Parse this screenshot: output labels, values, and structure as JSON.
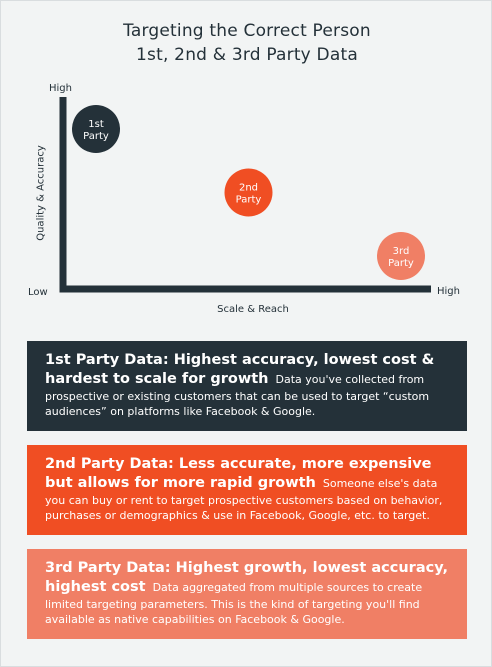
{
  "title_line1": "Targeting the Correct Person",
  "title_line2": "1st, 2nd & 3rd Party Data",
  "chart_data": {
    "type": "scatter",
    "xlabel": "Scale & Reach",
    "ylabel": "Quality & Accuracy",
    "y_high_label": "High",
    "x_high_label": "High",
    "origin_label": "Low",
    "points": [
      {
        "label_line1": "1st",
        "label_line2": "Party",
        "x": 1,
        "y": 3,
        "color": "#243139"
      },
      {
        "label_line1": "2nd",
        "label_line2": "Party",
        "x": 2,
        "y": 2,
        "color": "#f04e23"
      },
      {
        "label_line1": "3rd",
        "label_line2": "Party",
        "x": 3,
        "y": 1,
        "color": "#f07f65"
      }
    ]
  },
  "boxes": [
    {
      "heading": "1st Party Data: Highest accuracy, lowest cost & hardest to scale for growth",
      "body": "Data you've collected from prospective or existing customers that can be used to target “custom audiences” on platforms like Facebook & Google.",
      "color": "#243139"
    },
    {
      "heading": "2nd Party Data: Less accurate, more expensive but allows for more rapid growth",
      "body": "Someone else's data you can buy or rent to target prospective customers based on behavior, purchases or demographics & use in Facebook, Google, etc. to target.",
      "color": "#f04e23"
    },
    {
      "heading": "3rd Party Data: Highest growth, lowest accuracy, highest cost",
      "body": "Data aggregated from multiple sources to create limited targeting parameters. This is the kind of targeting you'll find available as native capabilities on Facebook & Google.",
      "color": "#f07f65"
    }
  ]
}
